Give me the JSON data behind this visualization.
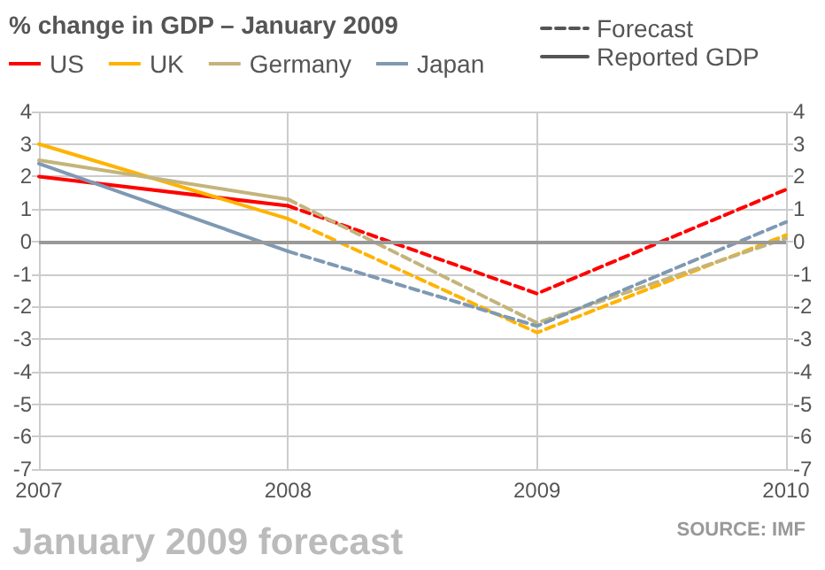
{
  "chart_data": {
    "type": "line",
    "title": "% change in GDP – January 2009",
    "annotations": [
      "SOURCE: IMF",
      "January 2009 forecast"
    ],
    "xlim": [
      2007,
      2010
    ],
    "xticks": [
      2007,
      2008,
      2009,
      2010
    ],
    "ylim": [
      -7,
      4
    ],
    "yticks": [
      -7,
      -6,
      -5,
      -4,
      -3,
      -2,
      -1,
      0,
      1,
      2,
      3,
      4
    ],
    "y2lim": [
      -7,
      4
    ],
    "y2ticks": [
      -7,
      -6,
      -5,
      -4,
      -3,
      -2,
      -1,
      0,
      1,
      2,
      3,
      4
    ],
    "grid": true,
    "legend": "top",
    "marker": "none",
    "ref_lines": [
      {
        "axis": "y",
        "value": 0,
        "color": "#999999"
      }
    ],
    "series": [
      {
        "name": "US",
        "color": "#ff0000",
        "line_style": "solid",
        "x": [
          2007,
          2008
        ],
        "values": [
          2.0,
          1.1
        ]
      },
      {
        "name": "UK",
        "color": "#ffb300",
        "line_style": "solid",
        "x": [
          2007,
          2008
        ],
        "values": [
          3.0,
          0.7
        ]
      },
      {
        "name": "Germany",
        "color": "#c4b47c",
        "line_style": "solid",
        "x": [
          2007,
          2008
        ],
        "values": [
          2.5,
          1.3
        ]
      },
      {
        "name": "Japan",
        "color": "#7f99b3",
        "line_style": "solid",
        "x": [
          2007,
          2008
        ],
        "values": [
          2.4,
          -0.3
        ]
      },
      {
        "color": "#ff0000",
        "line_style": "dashed",
        "x": [
          2008,
          2009,
          2010
        ],
        "values": [
          1.1,
          -1.6,
          1.6
        ]
      },
      {
        "color": "#ffb300",
        "line_style": "dashed",
        "x": [
          2008,
          2009,
          2010
        ],
        "values": [
          0.7,
          -2.8,
          0.2
        ]
      },
      {
        "color": "#c4b47c",
        "line_style": "dashed",
        "x": [
          2008,
          2009,
          2010
        ],
        "values": [
          1.3,
          -2.5,
          0.1
        ]
      },
      {
        "color": "#7f99b3",
        "line_style": "dashed",
        "x": [
          2008,
          2009,
          2010
        ],
        "values": [
          -0.3,
          -2.6,
          0.6
        ]
      },
      {
        "name": "Forecast",
        "color": "#555555",
        "line_style": "dashed"
      },
      {
        "name": "Reported GDP",
        "color": "#555555",
        "line_style": "solid"
      }
    ]
  }
}
